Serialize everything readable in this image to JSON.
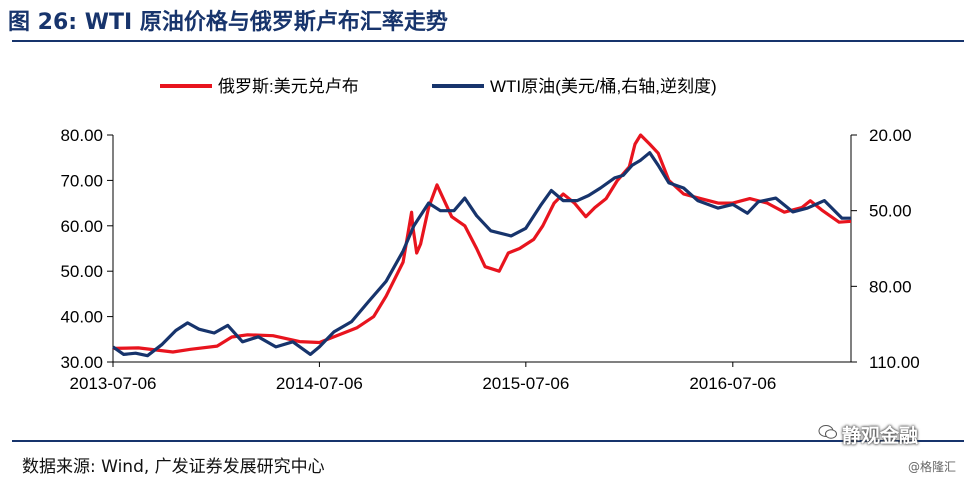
{
  "header": {
    "title": "图 26: WTI 原油价格与俄罗斯卢布汇率走势"
  },
  "footer": {
    "source": "数据来源: Wind, 广发证券发展研究中心",
    "watermark": "静观金融",
    "credit": "@格隆汇"
  },
  "colors": {
    "rub": "#e8141e",
    "wti": "#17346c",
    "title": "#17346c",
    "axis": "#000000"
  },
  "chart_data": {
    "type": "line",
    "x_ticks": [
      "2013-07-06",
      "2014-07-06",
      "2015-07-06",
      "2016-07-06"
    ],
    "x_range": [
      "2013-07-06",
      "2017-01-31"
    ],
    "y_left": {
      "range": [
        30,
        80
      ],
      "ticks": [
        "30.00",
        "40.00",
        "50.00",
        "60.00",
        "70.00",
        "80.00"
      ]
    },
    "y_right": {
      "range": [
        20,
        110
      ],
      "inverted": true,
      "ticks": [
        "20.00",
        "50.00",
        "80.00",
        "110.00"
      ]
    },
    "legend_position": "top",
    "series": [
      {
        "name": "俄罗斯:美元兑卢布",
        "axis": "left",
        "points": [
          [
            "2013-07-06",
            33.0
          ],
          [
            "2013-08-20",
            33.1
          ],
          [
            "2013-10-20",
            32.2
          ],
          [
            "2013-11-20",
            32.8
          ],
          [
            "2014-01-06",
            33.5
          ],
          [
            "2014-02-01",
            35.5
          ],
          [
            "2014-03-01",
            36.0
          ],
          [
            "2014-04-15",
            35.8
          ],
          [
            "2014-06-01",
            34.5
          ],
          [
            "2014-07-06",
            34.3
          ],
          [
            "2014-08-10",
            36.0
          ],
          [
            "2014-09-10",
            37.5
          ],
          [
            "2014-10-10",
            40.0
          ],
          [
            "2014-11-01",
            44.5
          ],
          [
            "2014-12-01",
            52.0
          ],
          [
            "2014-12-16",
            63.0
          ],
          [
            "2014-12-18",
            60.0
          ],
          [
            "2014-12-25",
            54.0
          ],
          [
            "2015-01-01",
            56.0
          ],
          [
            "2015-01-15",
            64.0
          ],
          [
            "2015-01-30",
            69.0
          ],
          [
            "2015-02-10",
            66.0
          ],
          [
            "2015-02-25",
            62.0
          ],
          [
            "2015-03-20",
            60.0
          ],
          [
            "2015-04-10",
            55.0
          ],
          [
            "2015-04-25",
            51.0
          ],
          [
            "2015-05-20",
            50.0
          ],
          [
            "2015-06-05",
            54.0
          ],
          [
            "2015-06-25",
            55.0
          ],
          [
            "2015-07-20",
            57.0
          ],
          [
            "2015-08-05",
            60.0
          ],
          [
            "2015-08-25",
            65.0
          ],
          [
            "2015-09-10",
            67.0
          ],
          [
            "2015-09-30",
            65.0
          ],
          [
            "2015-10-20",
            62.0
          ],
          [
            "2015-11-05",
            64.0
          ],
          [
            "2015-11-25",
            66.0
          ],
          [
            "2015-12-15",
            70.0
          ],
          [
            "2016-01-05",
            73.0
          ],
          [
            "2016-01-15",
            78.0
          ],
          [
            "2016-01-25",
            80.0
          ],
          [
            "2016-02-10",
            78.0
          ],
          [
            "2016-02-25",
            76.0
          ],
          [
            "2016-03-15",
            70.0
          ],
          [
            "2016-04-10",
            67.0
          ],
          [
            "2016-05-10",
            66.0
          ],
          [
            "2016-06-10",
            65.0
          ],
          [
            "2016-07-06",
            65.0
          ],
          [
            "2016-08-05",
            66.0
          ],
          [
            "2016-09-05",
            65.0
          ],
          [
            "2016-10-05",
            63.0
          ],
          [
            "2016-11-05",
            64.0
          ],
          [
            "2016-11-20",
            65.5
          ],
          [
            "2016-12-10",
            63.5
          ],
          [
            "2017-01-10",
            60.8
          ],
          [
            "2017-01-31",
            61.0
          ]
        ]
      },
      {
        "name": "WTI原油(美元/桶,右轴,逆刻度)",
        "axis": "right",
        "points": [
          [
            "2013-07-06",
            104.0
          ],
          [
            "2013-07-25",
            107.0
          ],
          [
            "2013-08-15",
            106.5
          ],
          [
            "2013-09-05",
            107.5
          ],
          [
            "2013-10-01",
            103.0
          ],
          [
            "2013-10-25",
            97.5
          ],
          [
            "2013-11-15",
            94.5
          ],
          [
            "2013-12-05",
            97.0
          ],
          [
            "2014-01-01",
            98.5
          ],
          [
            "2014-01-25",
            95.5
          ],
          [
            "2014-02-20",
            102.0
          ],
          [
            "2014-03-20",
            100.0
          ],
          [
            "2014-04-20",
            104.0
          ],
          [
            "2014-05-20",
            102.0
          ],
          [
            "2014-06-20",
            107.0
          ],
          [
            "2014-07-06",
            104.0
          ],
          [
            "2014-08-01",
            98.0
          ],
          [
            "2014-09-01",
            94.0
          ],
          [
            "2014-10-01",
            86.0
          ],
          [
            "2014-11-01",
            78.0
          ],
          [
            "2014-12-01",
            66.0
          ],
          [
            "2014-12-20",
            56.0
          ],
          [
            "2015-01-15",
            47.0
          ],
          [
            "2015-02-05",
            50.0
          ],
          [
            "2015-03-01",
            50.0
          ],
          [
            "2015-03-20",
            45.0
          ],
          [
            "2015-04-10",
            52.0
          ],
          [
            "2015-05-05",
            58.0
          ],
          [
            "2015-06-10",
            60.0
          ],
          [
            "2015-07-06",
            57.0
          ],
          [
            "2015-08-01",
            48.0
          ],
          [
            "2015-08-20",
            42.0
          ],
          [
            "2015-09-10",
            46.0
          ],
          [
            "2015-10-05",
            46.0
          ],
          [
            "2015-10-25",
            44.0
          ],
          [
            "2015-11-15",
            41.0
          ],
          [
            "2015-12-10",
            37.0
          ],
          [
            "2015-12-25",
            36.0
          ],
          [
            "2016-01-10",
            32.0
          ],
          [
            "2016-01-25",
            30.0
          ],
          [
            "2016-02-10",
            27.0
          ],
          [
            "2016-02-25",
            32.0
          ],
          [
            "2016-03-15",
            39.0
          ],
          [
            "2016-04-10",
            41.0
          ],
          [
            "2016-05-05",
            46.0
          ],
          [
            "2016-06-10",
            49.0
          ],
          [
            "2016-07-06",
            47.5
          ],
          [
            "2016-08-01",
            51.0
          ],
          [
            "2016-08-20",
            46.5
          ],
          [
            "2016-09-20",
            45.0
          ],
          [
            "2016-10-20",
            50.5
          ],
          [
            "2016-11-15",
            49.0
          ],
          [
            "2016-12-15",
            46.0
          ],
          [
            "2017-01-15",
            53.0
          ],
          [
            "2017-01-31",
            53.0
          ]
        ]
      }
    ]
  }
}
